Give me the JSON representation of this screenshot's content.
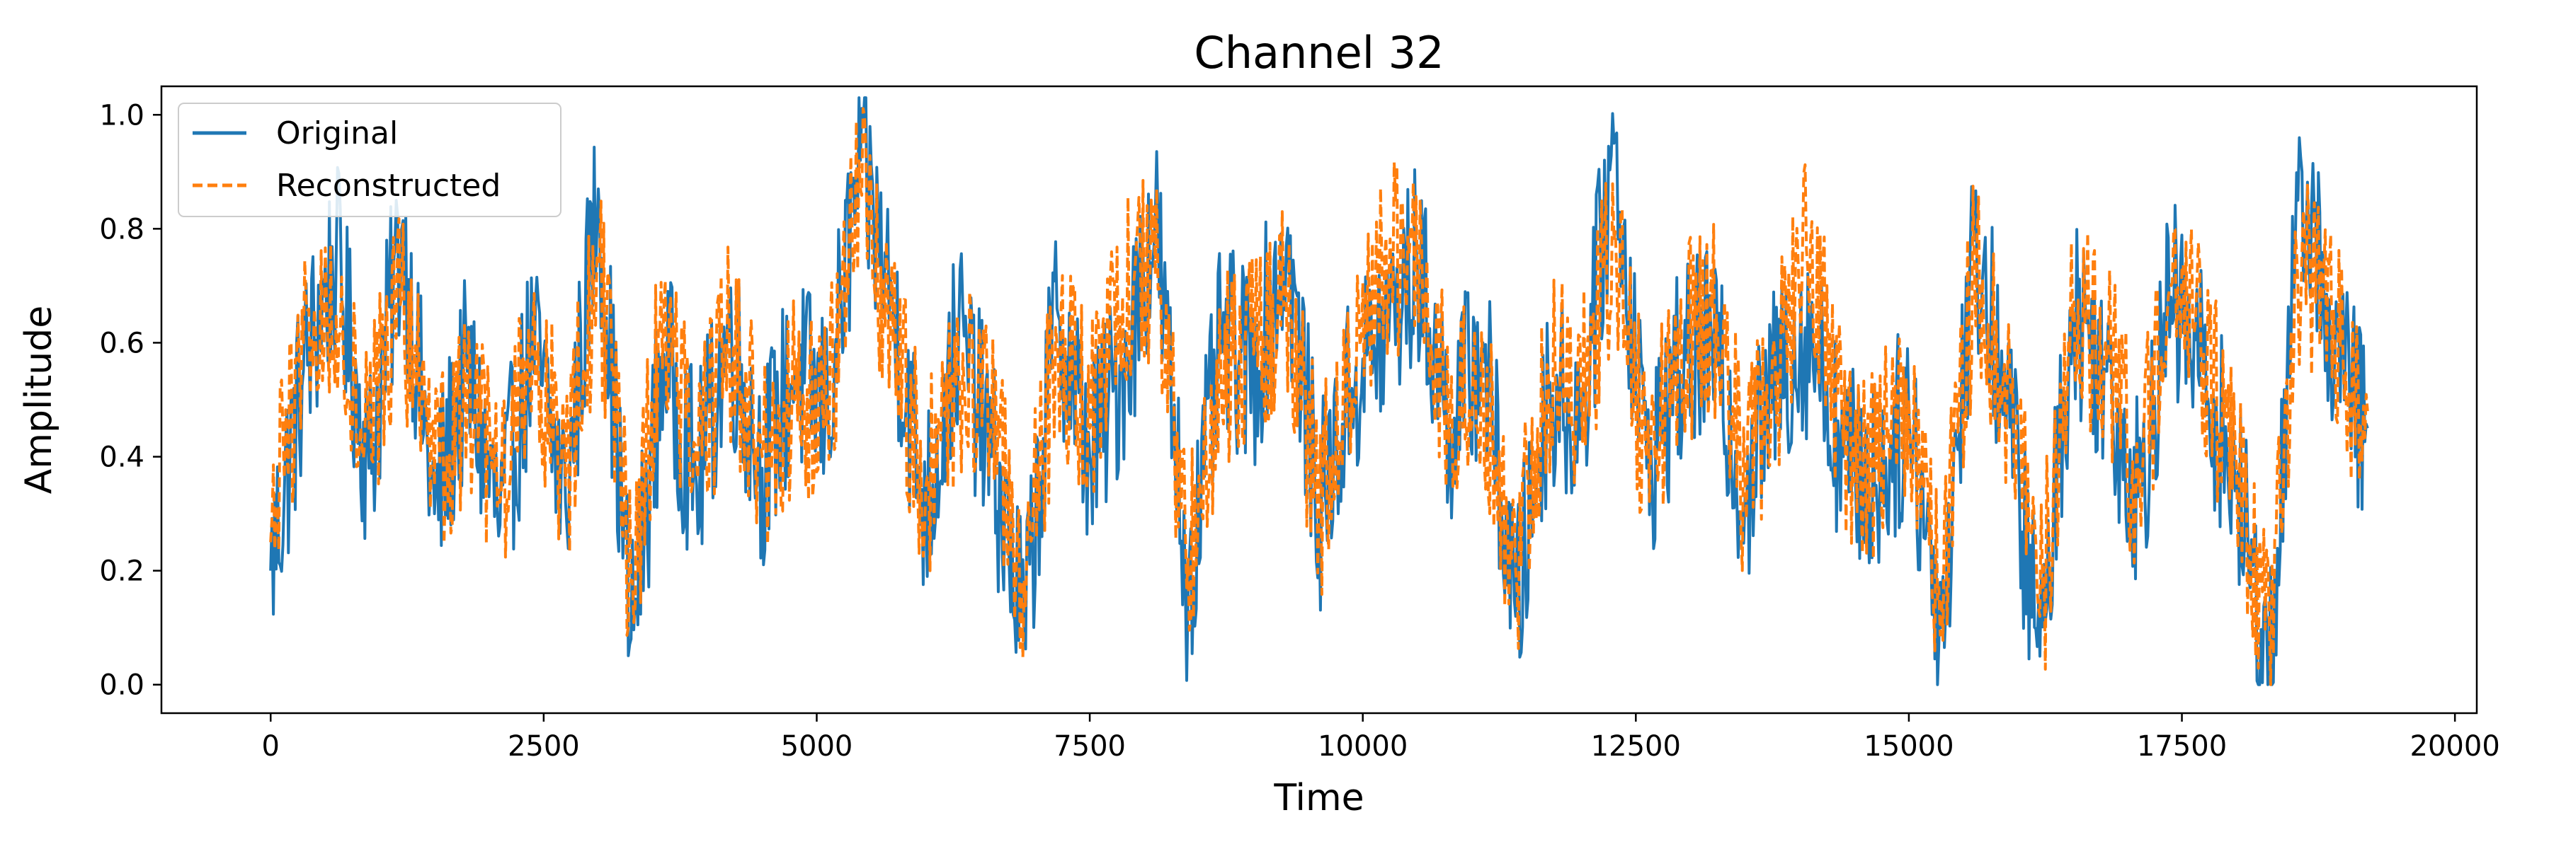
{
  "chart_data": {
    "type": "line",
    "title": "Channel 32",
    "xlabel": "Time",
    "ylabel": "Amplitude",
    "xlim": [
      -1000,
      20200
    ],
    "ylim": [
      -0.05,
      1.05
    ],
    "x_ticks": [
      0,
      2500,
      5000,
      7500,
      10000,
      12500,
      15000,
      17500,
      20000
    ],
    "x_tick_labels": [
      "0",
      "2500",
      "5000",
      "7500",
      "10000",
      "12500",
      "15000",
      "17500",
      "20000"
    ],
    "y_ticks": [
      0.0,
      0.2,
      0.4,
      0.6,
      0.8,
      1.0
    ],
    "y_tick_labels": [
      "0.0",
      "0.2",
      "0.4",
      "0.6",
      "0.8",
      "1.0"
    ],
    "grid": false,
    "legend_position": "top-left",
    "x": [
      0,
      300,
      600,
      900,
      1200,
      1500,
      1800,
      2100,
      2400,
      2700,
      3000,
      3300,
      3600,
      3900,
      4200,
      4500,
      4800,
      5100,
      5400,
      5700,
      6000,
      6300,
      6600,
      6900,
      7200,
      7500,
      7800,
      8100,
      8400,
      8700,
      9000,
      9300,
      9600,
      9900,
      10200,
      10500,
      10800,
      11100,
      11400,
      11700,
      12000,
      12300,
      12600,
      12900,
      13200,
      13500,
      13800,
      14100,
      14400,
      14700,
      15000,
      15300,
      15600,
      15900,
      16200,
      16500,
      16800,
      17100,
      17400,
      17700,
      18000,
      18300,
      18600,
      18900,
      19200
    ],
    "series": [
      {
        "name": "Original",
        "color": "#1f77b4",
        "style": "solid",
        "values": [
          0.2,
          0.55,
          0.75,
          0.38,
          0.8,
          0.3,
          0.55,
          0.28,
          0.6,
          0.32,
          0.87,
          0.08,
          0.58,
          0.35,
          0.62,
          0.38,
          0.55,
          0.48,
          0.92,
          0.66,
          0.3,
          0.62,
          0.4,
          0.1,
          0.66,
          0.4,
          0.55,
          0.82,
          0.16,
          0.6,
          0.55,
          0.77,
          0.3,
          0.52,
          0.62,
          0.74,
          0.45,
          0.6,
          0.12,
          0.52,
          0.46,
          0.95,
          0.38,
          0.55,
          0.6,
          0.33,
          0.55,
          0.62,
          0.4,
          0.35,
          0.48,
          0.1,
          0.78,
          0.5,
          0.05,
          0.66,
          0.55,
          0.33,
          0.68,
          0.55,
          0.35,
          0.02,
          0.9,
          0.58,
          0.45
        ]
      },
      {
        "name": "Reconstructed",
        "color": "#ff7f0e",
        "style": "dashed",
        "values": [
          0.25,
          0.6,
          0.65,
          0.45,
          0.68,
          0.35,
          0.5,
          0.32,
          0.62,
          0.35,
          0.74,
          0.18,
          0.66,
          0.38,
          0.6,
          0.4,
          0.5,
          0.5,
          0.87,
          0.6,
          0.35,
          0.55,
          0.45,
          0.18,
          0.6,
          0.45,
          0.68,
          0.72,
          0.22,
          0.55,
          0.58,
          0.68,
          0.32,
          0.5,
          0.75,
          0.72,
          0.48,
          0.55,
          0.2,
          0.55,
          0.5,
          0.78,
          0.4,
          0.58,
          0.66,
          0.35,
          0.55,
          0.78,
          0.42,
          0.38,
          0.5,
          0.15,
          0.72,
          0.52,
          0.12,
          0.64,
          0.6,
          0.35,
          0.7,
          0.58,
          0.38,
          0.12,
          0.76,
          0.6,
          0.48
        ]
      }
    ]
  }
}
